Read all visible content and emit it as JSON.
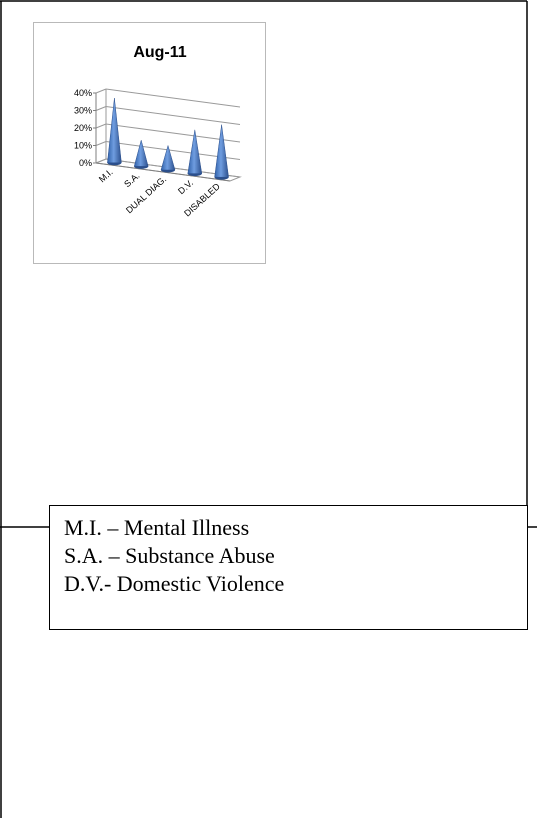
{
  "chart_data": {
    "type": "bar",
    "title": "Aug-11",
    "categories": [
      "M.I.",
      "S.A.",
      "DUAL DIAG.",
      "D.V.",
      "DISABLED"
    ],
    "values": [
      0.37,
      0.15,
      0.14,
      0.25,
      0.3
    ],
    "ylim": [
      0,
      0.4
    ],
    "yticks": [
      "0%",
      "10%",
      "20%",
      "30%",
      "40%"
    ],
    "grid": true,
    "color": "#4f7cc4"
  },
  "legend": {
    "lines": [
      "M.I. – Mental Illness",
      "S.A. – Substance Abuse",
      "D.V.- Domestic Violence"
    ]
  }
}
